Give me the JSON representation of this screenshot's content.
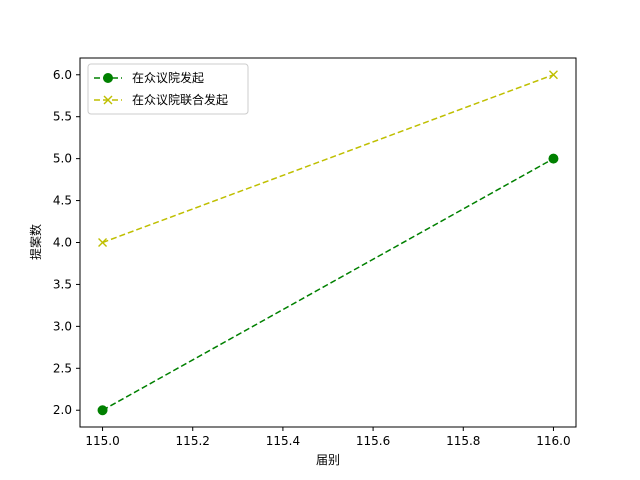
{
  "chart_data": {
    "type": "line",
    "title": "",
    "xlabel": "届别",
    "ylabel": "提案数",
    "xlim": [
      114.95,
      116.05
    ],
    "ylim": [
      1.8,
      6.2
    ],
    "xticks": [
      115.0,
      115.2,
      115.4,
      115.6,
      115.8,
      116.0
    ],
    "xtick_labels": [
      "115.0",
      "115.2",
      "115.4",
      "115.6",
      "115.8",
      "116.0"
    ],
    "yticks": [
      2.0,
      2.5,
      3.0,
      3.5,
      4.0,
      4.5,
      5.0,
      5.5,
      6.0
    ],
    "ytick_labels": [
      "2.0",
      "2.5",
      "3.0",
      "3.5",
      "4.0",
      "4.5",
      "5.0",
      "5.5",
      "6.0"
    ],
    "grid": false,
    "legend_position": "top-left",
    "series": [
      {
        "name": "在众议院发起",
        "x": [
          115,
          116
        ],
        "values": [
          2,
          5
        ],
        "color": "#008000",
        "marker": "circle",
        "linestyle": "dashed"
      },
      {
        "name": "在众议院联合发起",
        "x": [
          115,
          116
        ],
        "values": [
          4,
          6
        ],
        "color": "#bfbf00",
        "marker": "x",
        "linestyle": "dashed"
      }
    ]
  }
}
